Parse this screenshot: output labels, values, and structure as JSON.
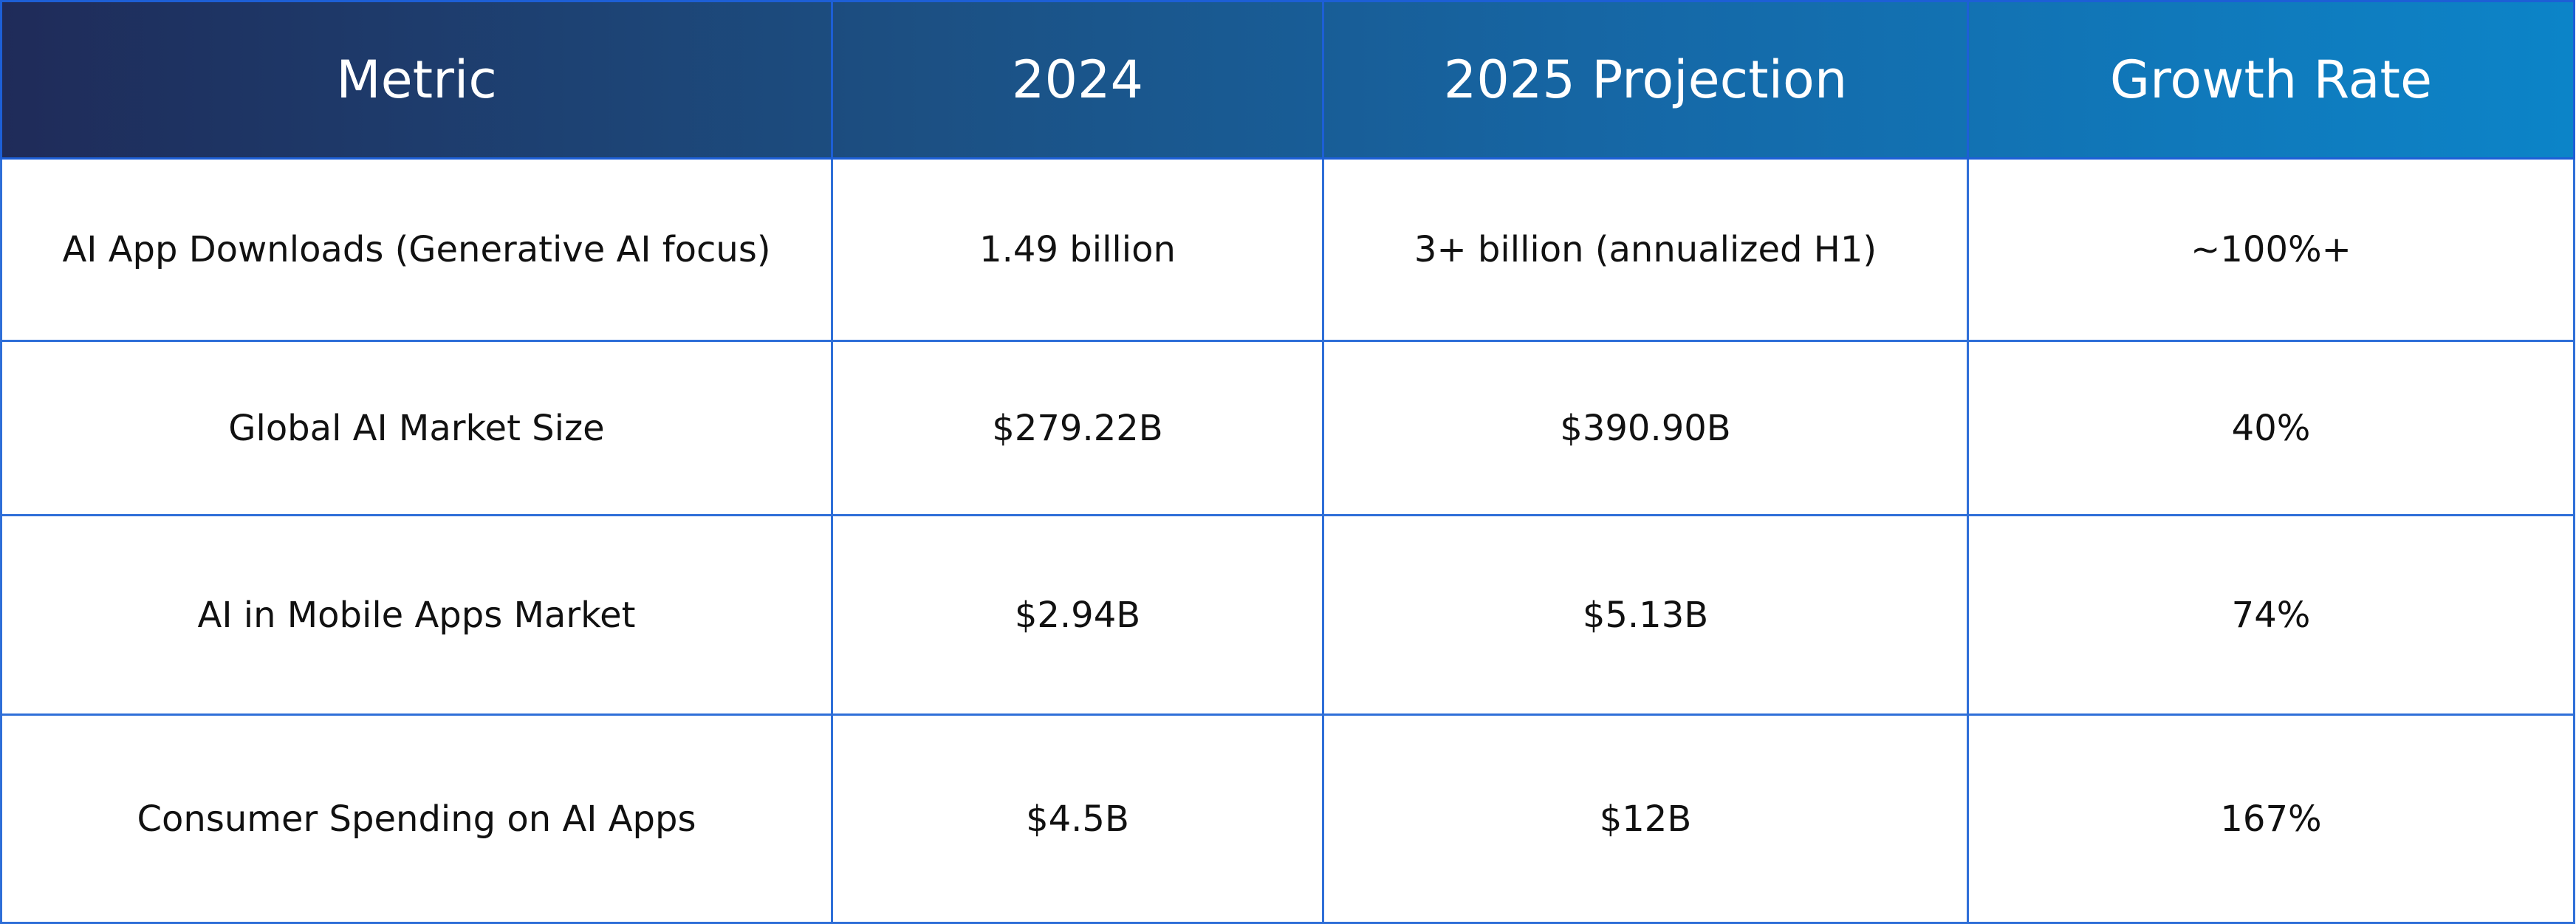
{
  "table": {
    "headers": [
      "Metric",
      "2024",
      "2025 Projection",
      "Growth Rate"
    ],
    "rows": [
      [
        "AI App Downloads (Generative AI focus)",
        "1.49 billion",
        "3+ billion (annualized H1)",
        "~100%+"
      ],
      [
        "Global AI Market Size",
        "$279.22B",
        "$390.90B",
        "40%"
      ],
      [
        "AI in Mobile Apps Market",
        "$2.94B",
        "$5.13B",
        "74%"
      ],
      [
        "Consumer Spending on AI Apps",
        "$4.5B",
        "$12B",
        "167%"
      ]
    ]
  },
  "colors": {
    "header_gradient_start": "#1f2b59",
    "header_gradient_end": "#0c84c8",
    "border": "#2f6fd8",
    "header_text": "#ffffff",
    "body_text": "#111111"
  }
}
